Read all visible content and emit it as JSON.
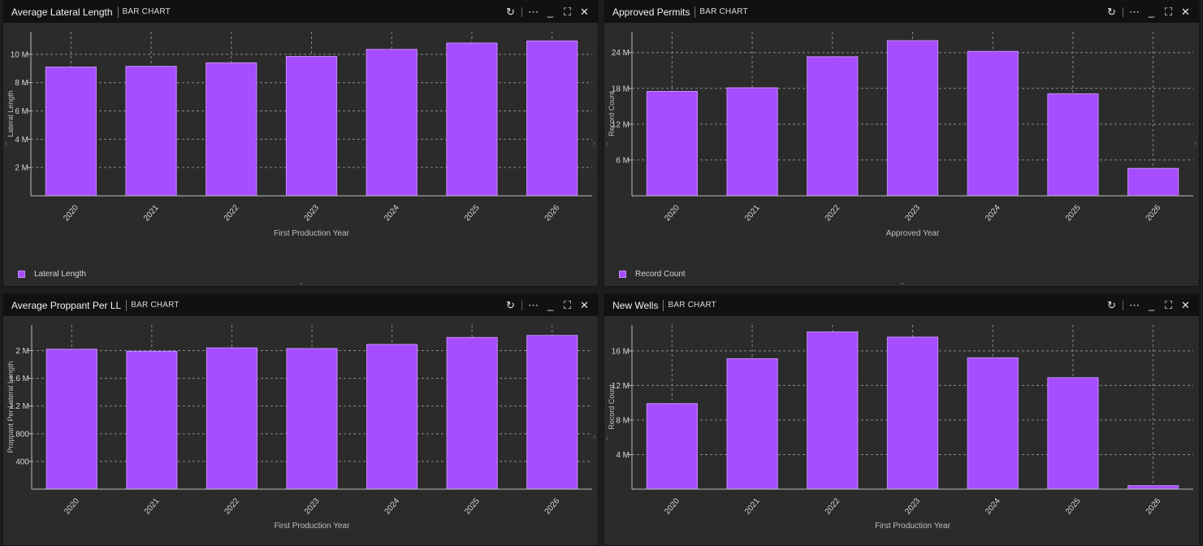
{
  "panels": [
    {
      "title": "Average Lateral Length",
      "type_label": "BAR CHART",
      "legend": "Lateral Length",
      "chart_data": {
        "type": "bar",
        "categories": [
          "2020",
          "2021",
          "2022",
          "2023",
          "2024",
          "2025",
          "2026"
        ],
        "values": [
          9.1,
          9.15,
          9.4,
          9.85,
          10.35,
          10.8,
          10.95
        ],
        "ylim": [
          0,
          11.6
        ],
        "yticks": [
          2,
          4,
          6,
          8,
          10
        ],
        "yticklabels": [
          "2 M",
          "4 M",
          "6 M",
          "8 M",
          "10 M"
        ],
        "xlabel": "First Production Year",
        "ylabel": "Lateral Length"
      }
    },
    {
      "title": "Approved Permits",
      "type_label": "BAR CHART",
      "legend": "Record Count",
      "chart_data": {
        "type": "bar",
        "categories": [
          "2020",
          "2021",
          "2022",
          "2023",
          "2024",
          "2025",
          "2026"
        ],
        "values": [
          17.5,
          18.1,
          23.3,
          26.0,
          24.2,
          17.1,
          4.6
        ],
        "ylim": [
          0,
          27.5
        ],
        "yticks": [
          6,
          12,
          18,
          24
        ],
        "yticklabels": [
          "6 M",
          "12 M",
          "18 M",
          "24 M"
        ],
        "xlabel": "Approved Year",
        "ylabel": "Record Count"
      }
    },
    {
      "title": "Average Proppant Per LL",
      "type_label": "BAR CHART",
      "legend": "",
      "chart_data": {
        "type": "bar",
        "categories": [
          "2020",
          "2021",
          "2022",
          "2023",
          "2024",
          "2025",
          "2026"
        ],
        "values": [
          2020,
          1990,
          2040,
          2030,
          2090,
          2190,
          2220
        ],
        "ylim": [
          0,
          2370
        ],
        "yticks": [
          400,
          800,
          1200,
          1600,
          2000
        ],
        "yticklabels": [
          "400",
          "800",
          "1.2 M",
          "1.6 M",
          "2 M"
        ],
        "xlabel": "First Production Year",
        "ylabel": "Proppant Per Lateral Length"
      }
    },
    {
      "title": "New Wells",
      "type_label": "BAR CHART",
      "legend": "",
      "chart_data": {
        "type": "bar",
        "categories": [
          "2020",
          "2021",
          "2022",
          "2023",
          "2024",
          "2025",
          "2026"
        ],
        "values": [
          9.9,
          15.1,
          18.2,
          17.6,
          15.2,
          12.9,
          0.4
        ],
        "ylim": [
          0,
          19.0
        ],
        "yticks": [
          4,
          8,
          12,
          16
        ],
        "yticklabels": [
          "4 M",
          "8 M",
          "12 M",
          "16 M"
        ],
        "xlabel": "First Production Year",
        "ylabel": "Record Count"
      }
    }
  ],
  "colors": {
    "bar": "#a64dff",
    "bar_edge": "#c58cff",
    "grid": "#8a8a8a",
    "axis": "#bdbdbd",
    "text": "#d6d6d6",
    "panel_bg": "#2b2b2b",
    "header_bg": "#111111"
  },
  "controls": {
    "refresh": "↻",
    "more": "⋯",
    "minimize": "_",
    "maximize": "⛶",
    "close": "✕"
  }
}
